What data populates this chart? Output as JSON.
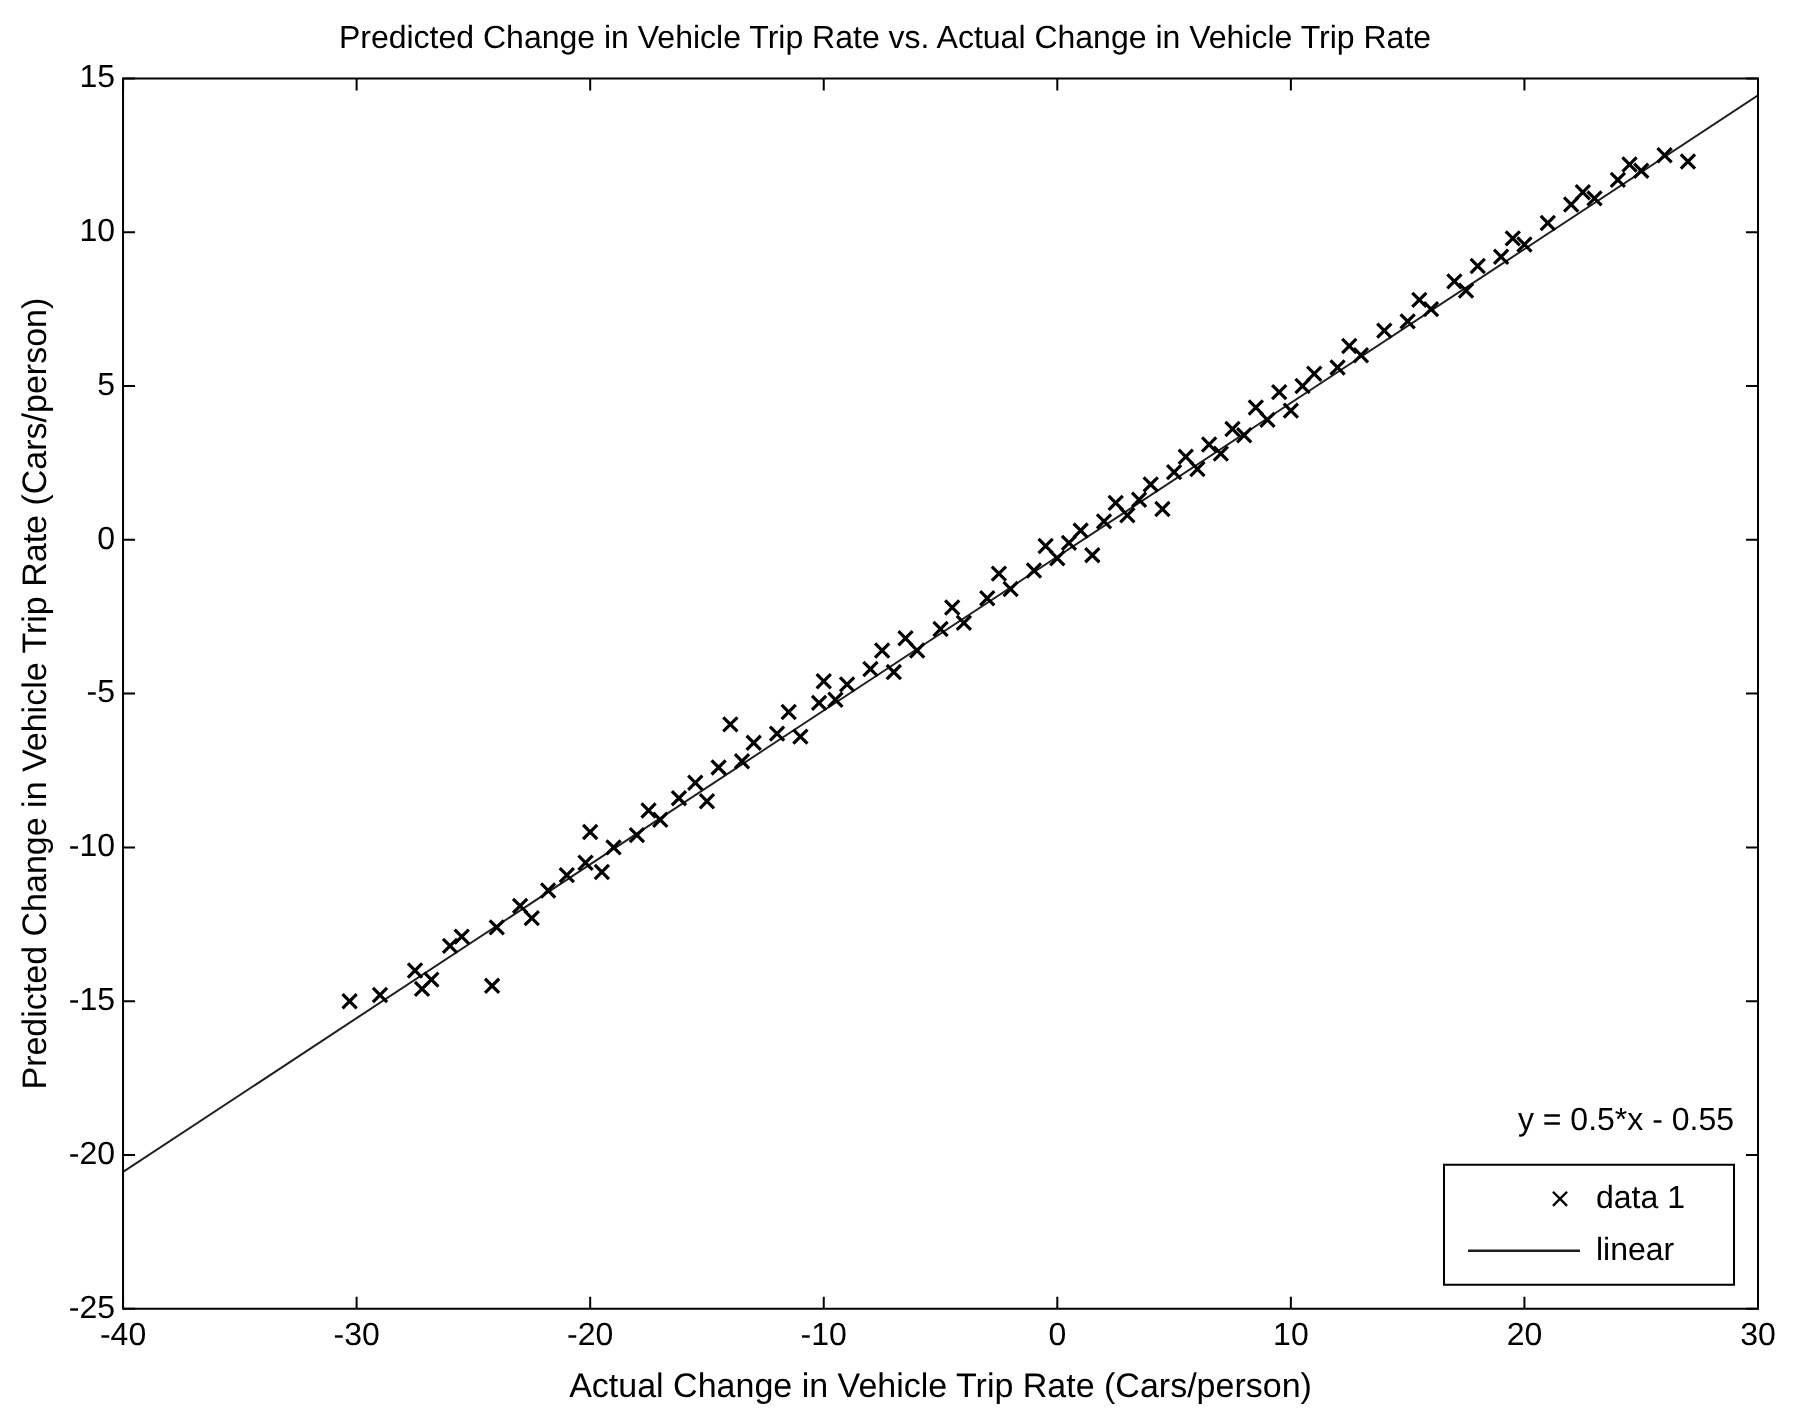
{
  "chart_data": {
    "type": "scatter",
    "title": "Predicted Change in Vehicle Trip Rate vs. Actual Change in Vehicle Trip Rate",
    "xlabel": "Actual Change in Vehicle Trip Rate (Cars/person)",
    "ylabel": "Predicted Change in Vehicle Trip Rate (Cars/person)",
    "annotations": [
      "y = 0.5*x - 0.55"
    ],
    "xlim": [
      -40,
      30
    ],
    "ylim": [
      -25,
      15
    ],
    "xticks": [
      -40,
      -30,
      -20,
      -10,
      0,
      10,
      20,
      30
    ],
    "yticks": [
      -25,
      -20,
      -15,
      -10,
      -5,
      0,
      5,
      10,
      15
    ],
    "grid": false,
    "legend": "bottom right",
    "series": [
      {
        "name": "data 1",
        "type": "scatter",
        "marker": "cross",
        "color": "#000000",
        "x": [
          -30.3,
          -29,
          -27.5,
          -27.2,
          -26.8,
          -26,
          -25.5,
          -24.2,
          -24,
          -23,
          -22.5,
          -21.8,
          -21,
          -20.2,
          -20,
          -19.5,
          -19,
          -18,
          -17.5,
          -17,
          -16.2,
          -15.5,
          -15,
          -14.5,
          -14,
          -13.5,
          -13,
          -12,
          -11.5,
          -11,
          -10.2,
          -10,
          -9.5,
          -9,
          -8,
          -7.5,
          -7,
          -6.5,
          -6,
          -5,
          -4.5,
          -4,
          -3,
          -2.5,
          -2,
          -1,
          -0.5,
          0,
          0.5,
          1,
          1.5,
          2,
          2.5,
          3,
          3.5,
          4,
          4.5,
          5,
          5.5,
          6,
          6.5,
          7,
          7.5,
          8,
          8.5,
          9,
          9.5,
          10,
          10.5,
          11,
          12,
          12.5,
          13,
          14,
          15,
          15.5,
          16,
          17,
          17.5,
          18,
          19,
          19.5,
          20,
          21,
          22,
          22.5,
          23,
          24,
          24.5,
          25,
          26,
          27
        ],
        "values": [
          -15,
          -14.8,
          -14,
          -14.6,
          -14.3,
          -13.2,
          -12.9,
          -14.5,
          -12.6,
          -11.9,
          -12.3,
          -11.4,
          -10.9,
          -10.5,
          -9.5,
          -10.8,
          -10,
          -9.6,
          -8.8,
          -9.1,
          -8.4,
          -7.9,
          -8.5,
          -7.4,
          -6,
          -7.2,
          -6.6,
          -6.3,
          -5.6,
          -6.4,
          -5.3,
          -4.6,
          -5.2,
          -4.7,
          -4.2,
          -3.6,
          -4.3,
          -3.2,
          -3.6,
          -2.9,
          -2.2,
          -2.7,
          -1.9,
          -1.1,
          -1.6,
          -1,
          -0.2,
          -0.6,
          -0.1,
          0.3,
          -0.5,
          0.6,
          1.2,
          0.8,
          1.3,
          1.8,
          1,
          2.2,
          2.7,
          2.3,
          3.1,
          2.8,
          3.6,
          3.4,
          4.3,
          3.9,
          4.8,
          4.2,
          5,
          5.4,
          5.6,
          6.3,
          6,
          6.8,
          7.1,
          7.8,
          7.5,
          8.4,
          8.1,
          8.9,
          9.2,
          9.8,
          9.6,
          10.3,
          10.9,
          11.3,
          11.1,
          11.7,
          12.2,
          12,
          12.5,
          12.3
        ]
      },
      {
        "name": "linear",
        "type": "line",
        "marker": "none",
        "line_style": "solid",
        "color": "#1f1f1f",
        "x": [
          -40,
          30
        ],
        "values": [
          -20.55,
          14.45
        ]
      }
    ]
  }
}
